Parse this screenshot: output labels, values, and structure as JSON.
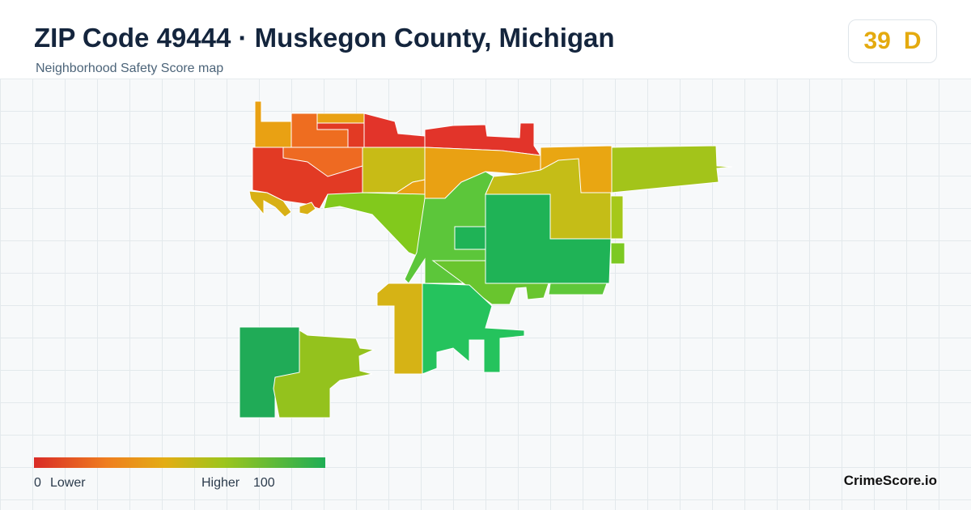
{
  "header": {
    "title": "ZIP Code 49444 · Muskegon County, Michigan",
    "subtitle": "Neighborhood Safety Score map"
  },
  "score": {
    "value": 39,
    "grade": "D"
  },
  "legend": {
    "min": 0,
    "min_label": "Lower",
    "max_label": "Higher",
    "max": 100
  },
  "brand": "CrimeScore.io"
}
